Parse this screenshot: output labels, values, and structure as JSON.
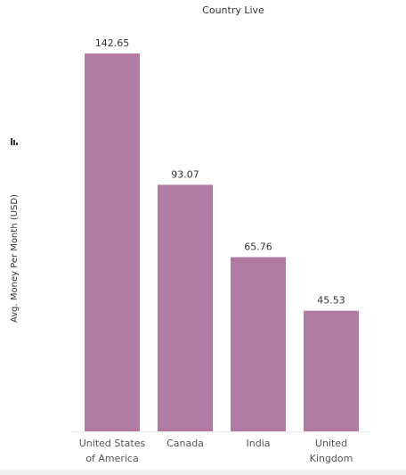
{
  "chart_data": {
    "type": "bar",
    "title": "Country Live",
    "y_label": "Avg. Money Per Month (USD)",
    "categories": [
      "United States of America",
      "Canada",
      "India",
      "United Kingdom"
    ],
    "values": [
      142.65,
      93.07,
      65.76,
      45.53
    ],
    "color": "#b07aa1"
  }
}
